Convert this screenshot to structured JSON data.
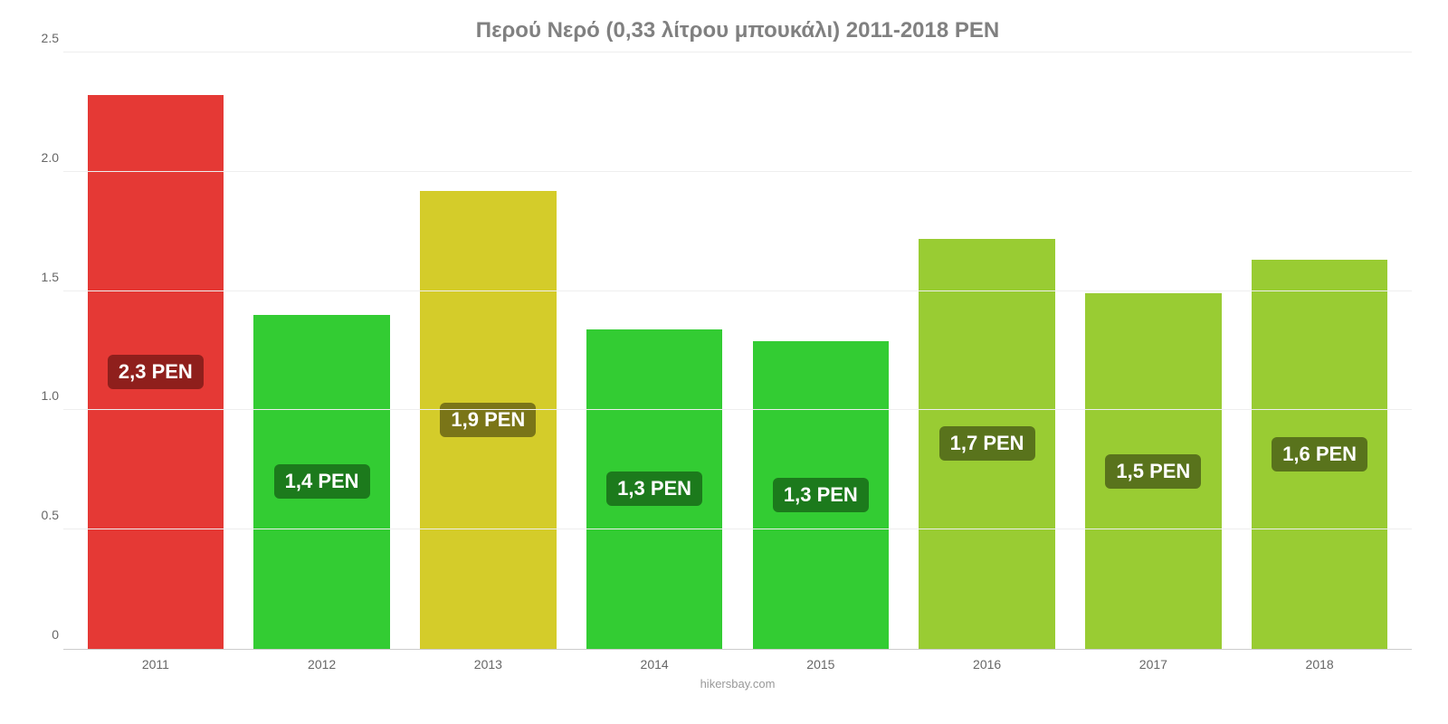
{
  "chart": {
    "type": "bar",
    "title": "Περού Νερό (0,33 λίτρου μπουκάλι) 2011-2018 PEN",
    "title_color": "#808080",
    "title_fontsize": 24,
    "source": "hikersbay.com",
    "source_color": "#999999",
    "background_color": "#ffffff",
    "grid_color": "#eeeeee",
    "axis_text_color": "#666666",
    "axis_fontsize": 14,
    "ylim": [
      0,
      2.5
    ],
    "ytick_step": 0.5,
    "yticks": [
      "0",
      "0.5",
      "1.0",
      "1.5",
      "2.0",
      "2.5"
    ],
    "categories": [
      "2011",
      "2012",
      "2013",
      "2014",
      "2015",
      "2016",
      "2017",
      "2018"
    ],
    "values": [
      2.32,
      1.4,
      1.92,
      1.34,
      1.29,
      1.72,
      1.49,
      1.63
    ],
    "bar_colors": [
      "#e53935",
      "#33cc33",
      "#d4cc2a",
      "#33cc33",
      "#33cc33",
      "#99cc33",
      "#99cc33",
      "#99cc33"
    ],
    "value_labels": [
      "2,3 PEN",
      "1,4 PEN",
      "1,9 PEN",
      "1,3 PEN",
      "1,3 PEN",
      "1,7 PEN",
      "1,5 PEN",
      "1,6 PEN"
    ],
    "label_bg_colors": [
      "#8f1f1c",
      "#1c7a1c",
      "#7a7518",
      "#1c7a1c",
      "#1c7a1c",
      "#59731c",
      "#59731c",
      "#59731c"
    ],
    "label_text_color": "#ffffff",
    "label_fontsize": 22,
    "bar_width_ratio": 0.82
  }
}
